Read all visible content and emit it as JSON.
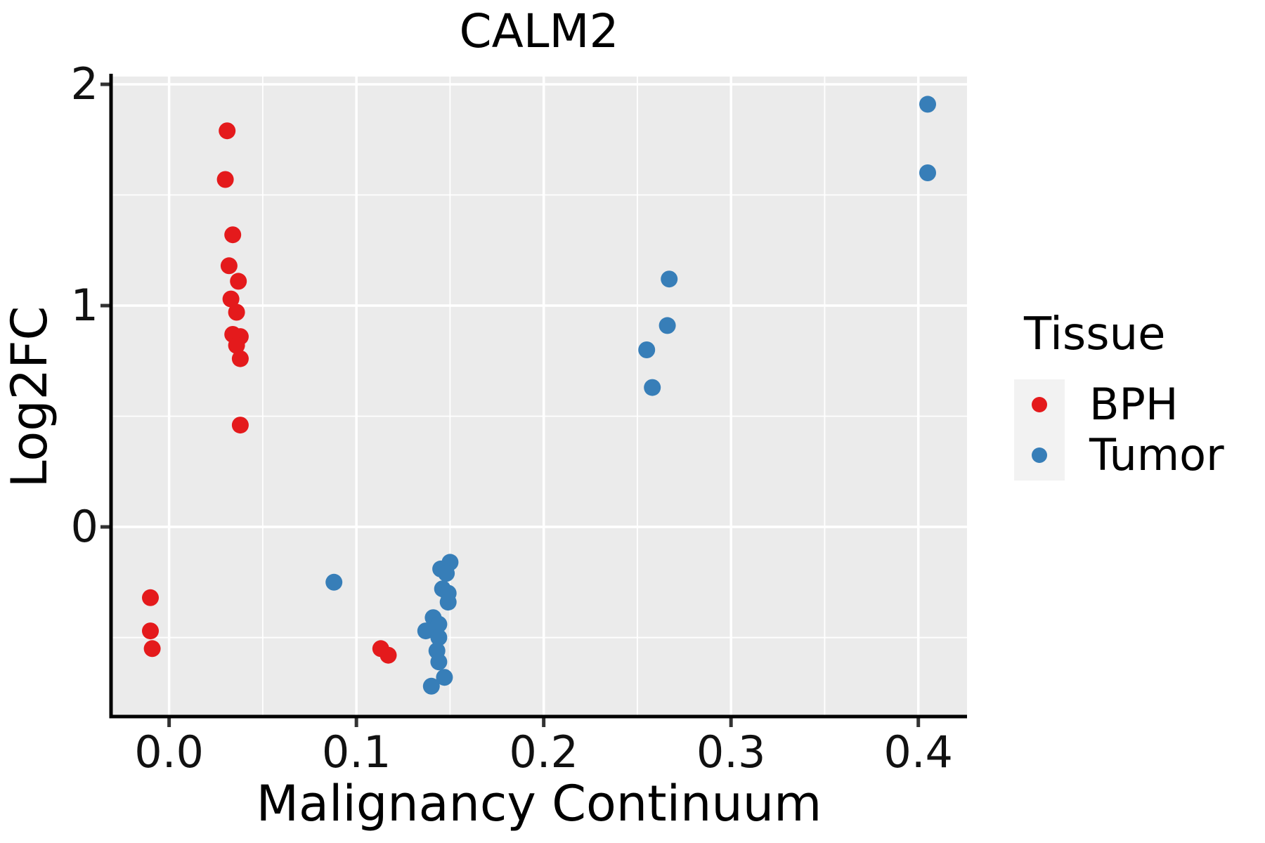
{
  "title": "CALM2",
  "axes": {
    "x": {
      "label": "Malignancy Continuum",
      "tick_labels": [
        "0.0",
        "0.1",
        "0.2",
        "0.3",
        "0.4"
      ],
      "tick_values": [
        0.0,
        0.1,
        0.2,
        0.3,
        0.4
      ],
      "minor_values": [
        0.05,
        0.15,
        0.25,
        0.35
      ],
      "range": [
        -0.031,
        0.426
      ]
    },
    "y": {
      "label": "Log2FC",
      "tick_labels": [
        "0",
        "1",
        "2"
      ],
      "tick_values": [
        0,
        1,
        2
      ],
      "minor_values": [
        -0.5,
        0.5,
        1.5
      ],
      "range": [
        -0.857,
        2.035
      ]
    }
  },
  "legend": {
    "title": "Tissue",
    "entries": [
      {
        "label": "BPH",
        "color": "#E41A1C"
      },
      {
        "label": "Tumor",
        "color": "#377EB8"
      }
    ]
  },
  "style": {
    "panel_bg": "#EBEBEB",
    "grid_color": "#FFFFFF",
    "axis_color": "#000000",
    "tick_color": "#333333",
    "legend_key_bg": "#F2F2F2",
    "point_radius": 12
  },
  "chart_data": {
    "type": "scatter",
    "title": "CALM2",
    "xlabel": "Malignancy Continuum",
    "ylabel": "Log2FC",
    "xlim": [
      -0.031,
      0.426
    ],
    "ylim": [
      -0.857,
      2.035
    ],
    "x_ticks": [
      0.0,
      0.1,
      0.2,
      0.3,
      0.4
    ],
    "y_ticks": [
      0,
      1,
      2
    ],
    "grid": true,
    "legend_title": "Tissue",
    "legend_position": "right",
    "series": [
      {
        "name": "BPH",
        "color": "#E41A1C",
        "points": [
          [
            -0.01,
            -0.32
          ],
          [
            -0.01,
            -0.47
          ],
          [
            -0.009,
            -0.55
          ],
          [
            0.031,
            1.79
          ],
          [
            0.03,
            1.57
          ],
          [
            0.034,
            1.32
          ],
          [
            0.032,
            1.18
          ],
          [
            0.037,
            1.11
          ],
          [
            0.033,
            1.03
          ],
          [
            0.036,
            0.97
          ],
          [
            0.034,
            0.87
          ],
          [
            0.038,
            0.86
          ],
          [
            0.036,
            0.82
          ],
          [
            0.038,
            0.76
          ],
          [
            0.038,
            0.46
          ],
          [
            0.113,
            -0.55
          ],
          [
            0.117,
            -0.58
          ]
        ]
      },
      {
        "name": "Tumor",
        "color": "#377EB8",
        "points": [
          [
            0.088,
            -0.25
          ],
          [
            0.15,
            -0.16
          ],
          [
            0.145,
            -0.19
          ],
          [
            0.148,
            -0.21
          ],
          [
            0.146,
            -0.28
          ],
          [
            0.149,
            -0.3
          ],
          [
            0.149,
            -0.34
          ],
          [
            0.141,
            -0.41
          ],
          [
            0.144,
            -0.44
          ],
          [
            0.137,
            -0.47
          ],
          [
            0.144,
            -0.5
          ],
          [
            0.143,
            -0.56
          ],
          [
            0.144,
            -0.61
          ],
          [
            0.147,
            -0.68
          ],
          [
            0.14,
            -0.72
          ],
          [
            0.267,
            1.12
          ],
          [
            0.266,
            0.91
          ],
          [
            0.255,
            0.8
          ],
          [
            0.258,
            0.63
          ],
          [
            0.405,
            1.91
          ],
          [
            0.405,
            1.6
          ]
        ]
      }
    ]
  }
}
